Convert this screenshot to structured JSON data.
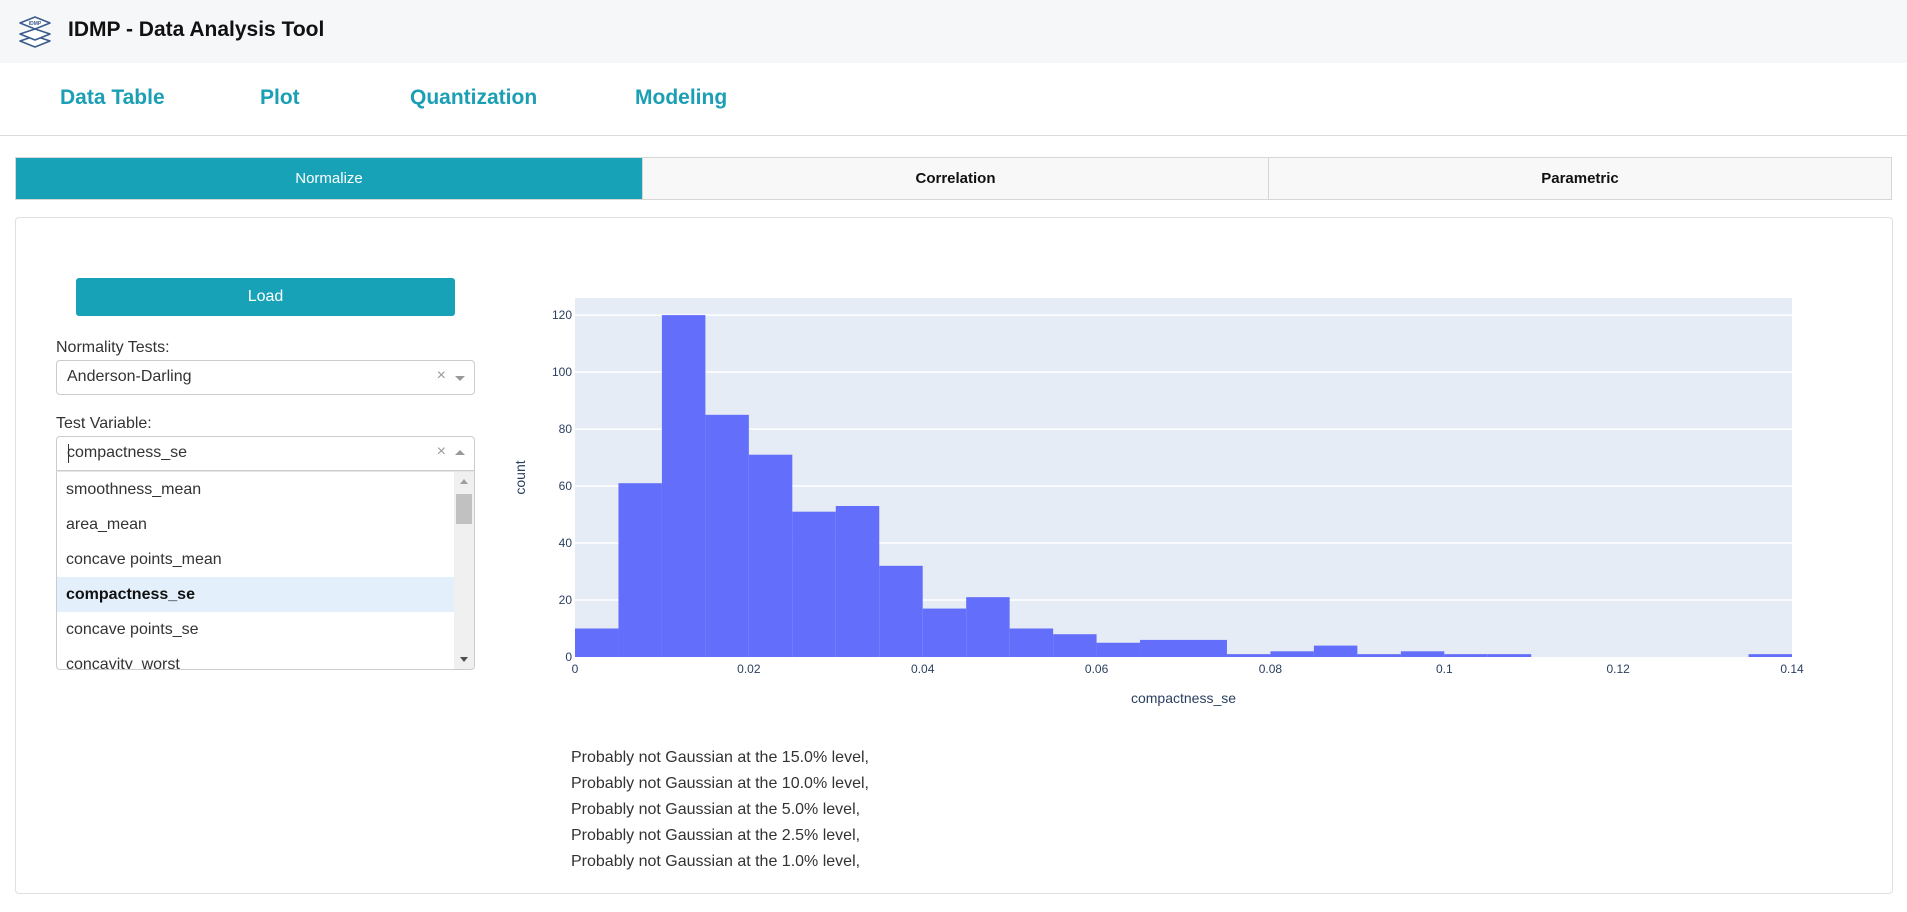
{
  "header": {
    "title": "IDMP - Data Analysis Tool",
    "logo_text": "IDMP",
    "logo_icon": "stacked-layers-icon"
  },
  "topnav": {
    "items": [
      {
        "label": "Data Table"
      },
      {
        "label": "Plot"
      },
      {
        "label": "Quantization"
      },
      {
        "label": "Modeling"
      }
    ]
  },
  "subtabs": {
    "items": [
      {
        "label": "Normalize",
        "active": true
      },
      {
        "label": "Correlation",
        "active": false
      },
      {
        "label": "Parametric",
        "active": false
      }
    ]
  },
  "controls": {
    "load_label": "Load",
    "normality_label": "Normality Tests:",
    "normality_value": "Anderson-Darling",
    "variable_label": "Test Variable:",
    "variable_value": "compactness_se",
    "clear_glyph": "×",
    "dropdown_options": [
      {
        "label": "smoothness_mean",
        "selected": false
      },
      {
        "label": "area_mean",
        "selected": false
      },
      {
        "label": "concave points_mean",
        "selected": false
      },
      {
        "label": "compactness_se",
        "selected": true
      },
      {
        "label": "concave points_se",
        "selected": false
      },
      {
        "label": "concavity_worst",
        "selected": false
      }
    ]
  },
  "colors": {
    "accent": "#18a2b8",
    "bar": "#636efa",
    "plot_bg": "#e5ecf6",
    "header_bg": "#f6f7f9",
    "selected_option_bg": "#e3f0fc"
  },
  "chart_data": {
    "type": "bar",
    "title": "",
    "xlabel": "compactness_se",
    "ylabel": "count",
    "bin_width": 0.005,
    "bin_starts": [
      0,
      0.005,
      0.01,
      0.015,
      0.02,
      0.025,
      0.03,
      0.035,
      0.04,
      0.045,
      0.05,
      0.055,
      0.06,
      0.065,
      0.07,
      0.075,
      0.08,
      0.085,
      0.09,
      0.095,
      0.1,
      0.105,
      0.11,
      0.115,
      0.12,
      0.125,
      0.13,
      0.135
    ],
    "values": [
      10,
      61,
      120,
      85,
      71,
      51,
      53,
      32,
      17,
      21,
      10,
      8,
      5,
      6,
      6,
      1,
      2,
      4,
      1,
      2,
      1,
      1,
      0,
      0,
      0,
      0,
      0,
      1
    ],
    "xlim": [
      0,
      0.14
    ],
    "ylim": [
      0,
      126
    ],
    "x_ticks": [
      "0",
      "0.02",
      "0.04",
      "0.06",
      "0.08",
      "0.1",
      "0.12",
      "0.14"
    ],
    "y_ticks": [
      "0",
      "20",
      "40",
      "60",
      "80",
      "100",
      "120"
    ],
    "grid": true,
    "legend": false
  },
  "results": {
    "lines": [
      "Probably not Gaussian at the 15.0% level,",
      "Probably not Gaussian at the 10.0% level,",
      "Probably not Gaussian at the 5.0% level,",
      "Probably not Gaussian at the 2.5% level,",
      "Probably not Gaussian at the 1.0% level,"
    ]
  }
}
